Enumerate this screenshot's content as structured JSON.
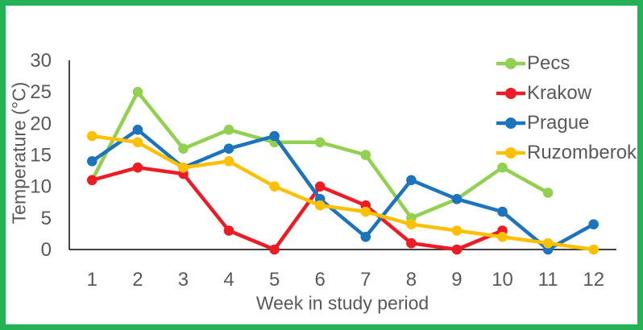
{
  "figure": {
    "border_color": "#25B256",
    "background_color": "#FFFFFF",
    "axis_line_color": "#262626"
  },
  "chart_data": {
    "type": "line",
    "title": "",
    "xlabel": "Week in study period",
    "ylabel": "Temperature (°C)",
    "x": [
      1,
      2,
      3,
      4,
      5,
      6,
      7,
      8,
      9,
      10,
      11,
      12
    ],
    "y_ticks": [
      0,
      5,
      10,
      15,
      20,
      25,
      30
    ],
    "ylim": [
      0,
      30
    ],
    "grid": false,
    "legend_position": "top-right",
    "axis_text_color": "#595959",
    "series": [
      {
        "name": "Pecs",
        "color": "#92D050",
        "values": [
          11,
          25,
          16,
          19,
          17,
          17,
          15,
          5,
          8,
          13,
          9,
          null
        ]
      },
      {
        "name": "Krakow",
        "color": "#ED1C24",
        "values": [
          11,
          13,
          12,
          3,
          0,
          10,
          7,
          1,
          0,
          3,
          null,
          null
        ]
      },
      {
        "name": "Prague",
        "color": "#1C75BC",
        "values": [
          14,
          19,
          13,
          16,
          18,
          8,
          2,
          11,
          8,
          6,
          0,
          4
        ]
      },
      {
        "name": "Ruzomberok",
        "color": "#FFC000",
        "values": [
          18,
          17,
          13,
          14,
          10,
          7,
          6,
          4,
          3,
          2,
          1,
          0
        ]
      }
    ]
  }
}
